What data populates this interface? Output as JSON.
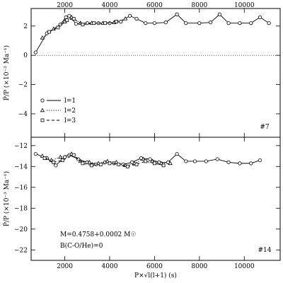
{
  "chart_data": [
    {
      "type": "line",
      "panel_label": "#7",
      "ylabel": "Ṗ/P (×10⁻³ Ma⁻¹)",
      "xlim": [
        500,
        11600
      ],
      "ylim": [
        -5.6,
        3.2
      ],
      "yticks": [
        -4,
        -2,
        0,
        2
      ],
      "xticks_top": [
        2000,
        4000,
        6000,
        8000,
        10000
      ],
      "reference_line": 0,
      "legend": {
        "placement": "lower-left",
        "entries": [
          {
            "label": "l=1",
            "marker": "circle",
            "line": "solid"
          },
          {
            "label": "l=2",
            "marker": "triangle",
            "line": "dotted"
          },
          {
            "label": "l=3",
            "marker": "square",
            "line": "dashed"
          }
        ]
      },
      "series": [
        {
          "name": "l=1",
          "marker": "circle",
          "line": "solid",
          "x": [
            700,
            1200,
            1800,
            2050,
            2200,
            2500,
            3000,
            3500,
            4000,
            4500,
            4900,
            5200,
            5600,
            6000,
            6500,
            7000,
            7400,
            8000,
            8500,
            8900,
            9300,
            9800,
            10300,
            10700,
            11100
          ],
          "y": [
            0.2,
            1.5,
            2.1,
            2.6,
            2.7,
            2.15,
            2.2,
            2.2,
            2.2,
            2.3,
            2.7,
            2.5,
            2.2,
            2.2,
            2.25,
            2.8,
            2.2,
            2.2,
            2.25,
            2.8,
            2.2,
            2.2,
            2.2,
            2.6,
            2.2
          ]
        },
        {
          "name": "l=2",
          "marker": "triangle",
          "line": "dotted",
          "x": [
            1000,
            1500,
            2000,
            2300,
            2700,
            3200,
            3700,
            4200,
            4700
          ],
          "y": [
            1.2,
            1.8,
            2.3,
            2.6,
            2.2,
            2.2,
            2.2,
            2.25,
            2.5
          ]
        },
        {
          "name": "l=3",
          "marker": "square",
          "line": "dashed",
          "x": [
            1300,
            1700,
            2100,
            2400,
            2800,
            3300,
            3800,
            4300
          ],
          "y": [
            1.6,
            1.9,
            2.4,
            2.5,
            2.1,
            2.2,
            2.2,
            2.3
          ]
        }
      ]
    },
    {
      "type": "line",
      "panel_label": "#14",
      "ylabel": "Ṗ/P (×10⁻³ Ma⁻¹)",
      "xlabel": "P×√l(l+1) (s)",
      "xlim": [
        500,
        11600
      ],
      "ylim": [
        -23,
        -11.2
      ],
      "yticks": [
        -22,
        -20,
        -18,
        -16,
        -14,
        -12
      ],
      "xticks": [
        2000,
        4000,
        6000,
        8000,
        10000
      ],
      "annotations": [
        "M=0.4758+0.0002 M☉",
        "B(C-O/He)=0"
      ],
      "series": [
        {
          "name": "l=1",
          "marker": "circle",
          "line": "solid",
          "x": [
            700,
            1200,
            1600,
            2000,
            2200,
            2600,
            3000,
            3400,
            3800,
            4200,
            4600,
            5000,
            5400,
            5800,
            6200,
            6600,
            7000,
            7400,
            7800,
            8300,
            8800,
            9300,
            9800,
            10300,
            10700
          ],
          "y": [
            -12.8,
            -13.2,
            -13.9,
            -13.1,
            -12.9,
            -13.3,
            -13.6,
            -13.8,
            -13.6,
            -13.7,
            -13.8,
            -13.6,
            -13.2,
            -13.3,
            -13.6,
            -13.6,
            -12.8,
            -13.5,
            -13.5,
            -13.5,
            -13.3,
            -13.6,
            -13.7,
            -13.7,
            -13.4
          ]
        },
        {
          "name": "l=2",
          "marker": "triangle",
          "line": "dotted",
          "x": [
            1000,
            1400,
            1800,
            2300,
            2700,
            3100,
            3500,
            3900,
            4300,
            4700,
            5100,
            5500,
            5900,
            6300,
            6700
          ],
          "y": [
            -13.0,
            -13.4,
            -13.1,
            -12.8,
            -13.5,
            -13.6,
            -13.7,
            -13.5,
            -13.6,
            -13.9,
            -13.7,
            -13.3,
            -13.5,
            -13.7,
            -13.7
          ]
        },
        {
          "name": "l=3",
          "marker": "square",
          "line": "dashed",
          "x": [
            1100,
            1500,
            1900,
            2400,
            2800,
            3200,
            3600,
            4000,
            4400,
            4800,
            5200,
            5600,
            6000,
            6400
          ],
          "y": [
            -13.2,
            -13.6,
            -13.4,
            -12.9,
            -13.7,
            -13.9,
            -13.8,
            -13.7,
            -13.8,
            -14.0,
            -13.8,
            -13.5,
            -13.7,
            -13.9
          ]
        }
      ]
    }
  ]
}
